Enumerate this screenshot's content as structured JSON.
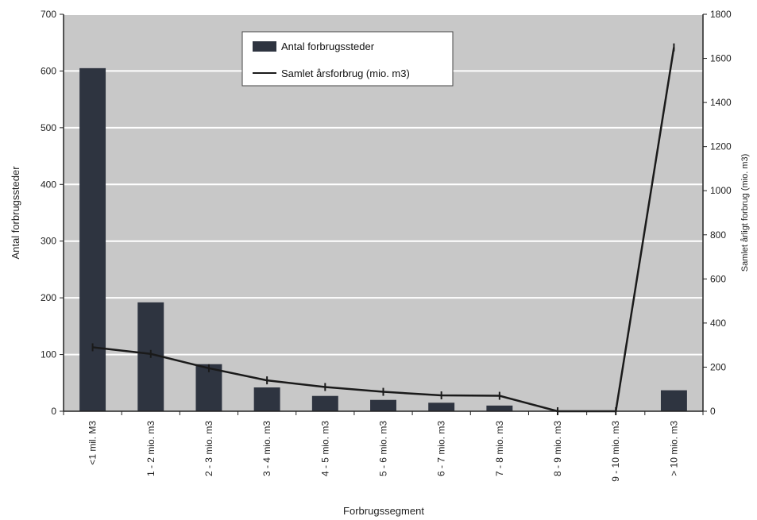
{
  "chart_data": {
    "type": "bar",
    "categories": [
      "<1 mil. M3",
      "1 - 2 mio. m3",
      "2 - 3 mio. m3",
      "3 - 4 mio. m3",
      "4 - 5 mio. m3",
      "5 - 6 mio. m3",
      "6 - 7 mio. m3",
      "7 - 8 mio. m3",
      "8 - 9 mio. m3",
      "9 - 10 mio. m3",
      "> 10 mio. m3"
    ],
    "series": [
      {
        "name": "Antal forbrugssteder",
        "kind": "bar",
        "axis": "left",
        "values": [
          605,
          192,
          83,
          42,
          27,
          20,
          15,
          10,
          0,
          0,
          37
        ]
      },
      {
        "name": "Samlet årsforbrug (mio. m3)",
        "kind": "line",
        "axis": "right",
        "values": [
          290,
          260,
          195,
          140,
          110,
          88,
          72,
          70,
          0,
          0,
          1650
        ]
      }
    ],
    "xlabel": "Forbrugssegment",
    "ylabel": "Antal forbrugssteder",
    "y2label": "Samlet årligt forbrug (mio. m3)",
    "ylim": [
      0,
      700
    ],
    "y2lim": [
      0,
      1800
    ],
    "yticks": [
      "0",
      "100",
      "200",
      "300",
      "400",
      "500",
      "600",
      "700"
    ],
    "y2ticks": [
      "0",
      "200",
      "400",
      "600",
      "800",
      "1000",
      "1200",
      "1400",
      "1600",
      "1800"
    ],
    "grid": true,
    "legend": "top-center",
    "colors": {
      "bar": "#2e3440",
      "line": "#1a1a1a",
      "plot_bg": "#c8c8c8",
      "grid": "#ffffff"
    }
  }
}
